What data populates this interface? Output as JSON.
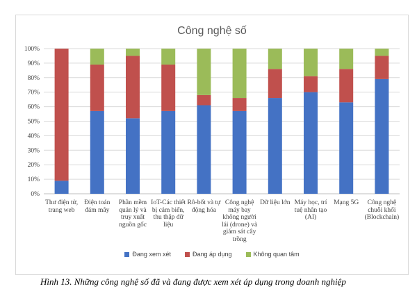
{
  "chart_data": {
    "type": "bar",
    "stacked": true,
    "title": "Công nghệ số",
    "categories": [
      "Thư điện tử, trang web",
      "Điện toán đám mây",
      "Phần mềm quản lý và truy xuất nguồn gốc",
      "IoT-Các thiết bị cảm biến, thu thập dữ liệu",
      "Rô-bốt và tự động hóa",
      "Công nghệ máy bay không người lái (drone) và giám sát cây trồng",
      "Dữ liệu lớn",
      "Máy học, trí tuệ nhân tạo (AI)",
      "Mạng 5G",
      "Công nghệ chuỗi khối (Blockchain)"
    ],
    "series": [
      {
        "name": "Đang xem xét",
        "color": "#4472C4",
        "values": [
          9,
          57,
          52,
          57,
          61,
          57,
          66,
          70,
          63,
          79
        ]
      },
      {
        "name": "Đang áp dụng",
        "color": "#C0504D",
        "values": [
          91,
          32,
          43,
          32,
          7,
          9,
          20,
          11,
          23,
          16
        ]
      },
      {
        "name": "Không quan tâm",
        "color": "#9BBB59",
        "values": [
          0,
          11,
          5,
          11,
          32,
          34,
          14,
          19,
          14,
          5
        ]
      }
    ],
    "ylim": [
      0,
      100
    ],
    "yticks": [
      "0%",
      "10%",
      "20%",
      "30%",
      "40%",
      "50%",
      "60%",
      "70%",
      "80%",
      "90%",
      "100%"
    ],
    "grid": true,
    "legend": "bottom"
  },
  "caption": "Hình 13. Những công nghệ số đã và đang được xem xét áp dụng trong doanh nghiệp"
}
